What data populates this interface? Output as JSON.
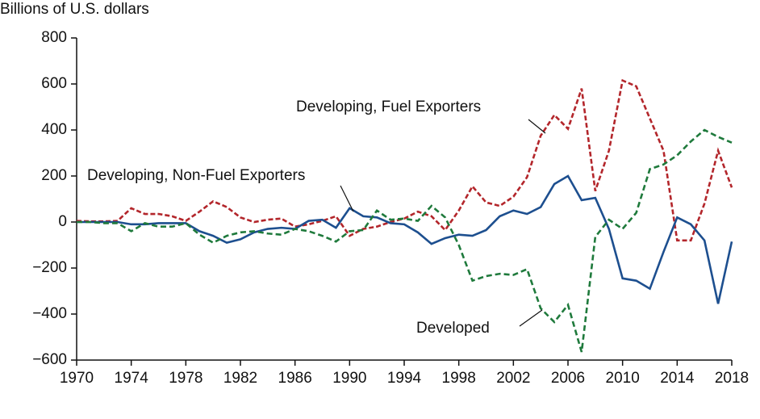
{
  "chart_data": {
    "type": "line",
    "y_axis_label": "Billions of U.S. dollars",
    "x": [
      1970,
      1971,
      1972,
      1973,
      1974,
      1975,
      1976,
      1977,
      1978,
      1979,
      1980,
      1981,
      1982,
      1983,
      1984,
      1985,
      1986,
      1987,
      1988,
      1989,
      1990,
      1991,
      1992,
      1993,
      1994,
      1995,
      1996,
      1997,
      1998,
      1999,
      2000,
      2001,
      2002,
      2003,
      2004,
      2005,
      2006,
      2007,
      2008,
      2009,
      2010,
      2011,
      2012,
      2013,
      2014,
      2015,
      2016,
      2017,
      2018
    ],
    "series": [
      {
        "name": "Developing, Fuel Exporters",
        "color": "#b3262b",
        "dash": "6,3",
        "values": [
          5,
          3,
          3,
          5,
          60,
          35,
          35,
          25,
          5,
          45,
          90,
          65,
          20,
          0,
          10,
          15,
          -20,
          -10,
          5,
          25,
          -60,
          -30,
          -20,
          0,
          15,
          45,
          25,
          -35,
          50,
          155,
          85,
          70,
          110,
          195,
          375,
          465,
          405,
          580,
          135,
          310,
          615,
          590,
          450,
          310,
          -80,
          -80,
          80,
          310,
          150
        ]
      },
      {
        "name": "Developing, Non-Fuel Exporters",
        "color": "#1d4f8f",
        "dash": "",
        "values": [
          0,
          0,
          0,
          0,
          -10,
          -10,
          -5,
          -5,
          -5,
          -40,
          -60,
          -90,
          -75,
          -45,
          -30,
          -25,
          -30,
          5,
          10,
          -25,
          60,
          25,
          20,
          -5,
          -10,
          -45,
          -95,
          -70,
          -55,
          -60,
          -35,
          25,
          50,
          35,
          65,
          165,
          200,
          95,
          105,
          -30,
          -245,
          -255,
          -290,
          -130,
          20,
          -10,
          -80,
          -355,
          -85
        ]
      },
      {
        "name": "Developed",
        "color": "#1f7a3c",
        "dash": "7,4",
        "values": [
          0,
          0,
          -5,
          -5,
          -40,
          -5,
          -20,
          -20,
          -5,
          -55,
          -90,
          -60,
          -45,
          -40,
          -50,
          -55,
          -30,
          -40,
          -60,
          -85,
          -40,
          -35,
          50,
          10,
          15,
          5,
          70,
          20,
          -100,
          -255,
          -235,
          -225,
          -230,
          -205,
          -375,
          -435,
          -360,
          -565,
          -65,
          10,
          -30,
          40,
          230,
          250,
          290,
          350,
          400,
          370,
          345
        ]
      }
    ],
    "xlim": [
      1970,
      2018
    ],
    "xticks": [
      1970,
      1974,
      1978,
      1982,
      1986,
      1990,
      1994,
      1998,
      2002,
      2006,
      2010,
      2014,
      2018
    ],
    "ylim": [
      -600,
      800
    ],
    "yticks": [
      {
        "value": -600,
        "label": "−600"
      },
      {
        "value": -400,
        "label": "−400"
      },
      {
        "value": -200,
        "label": "−200"
      },
      0,
      200,
      400,
      600,
      800
    ],
    "grid": false
  }
}
